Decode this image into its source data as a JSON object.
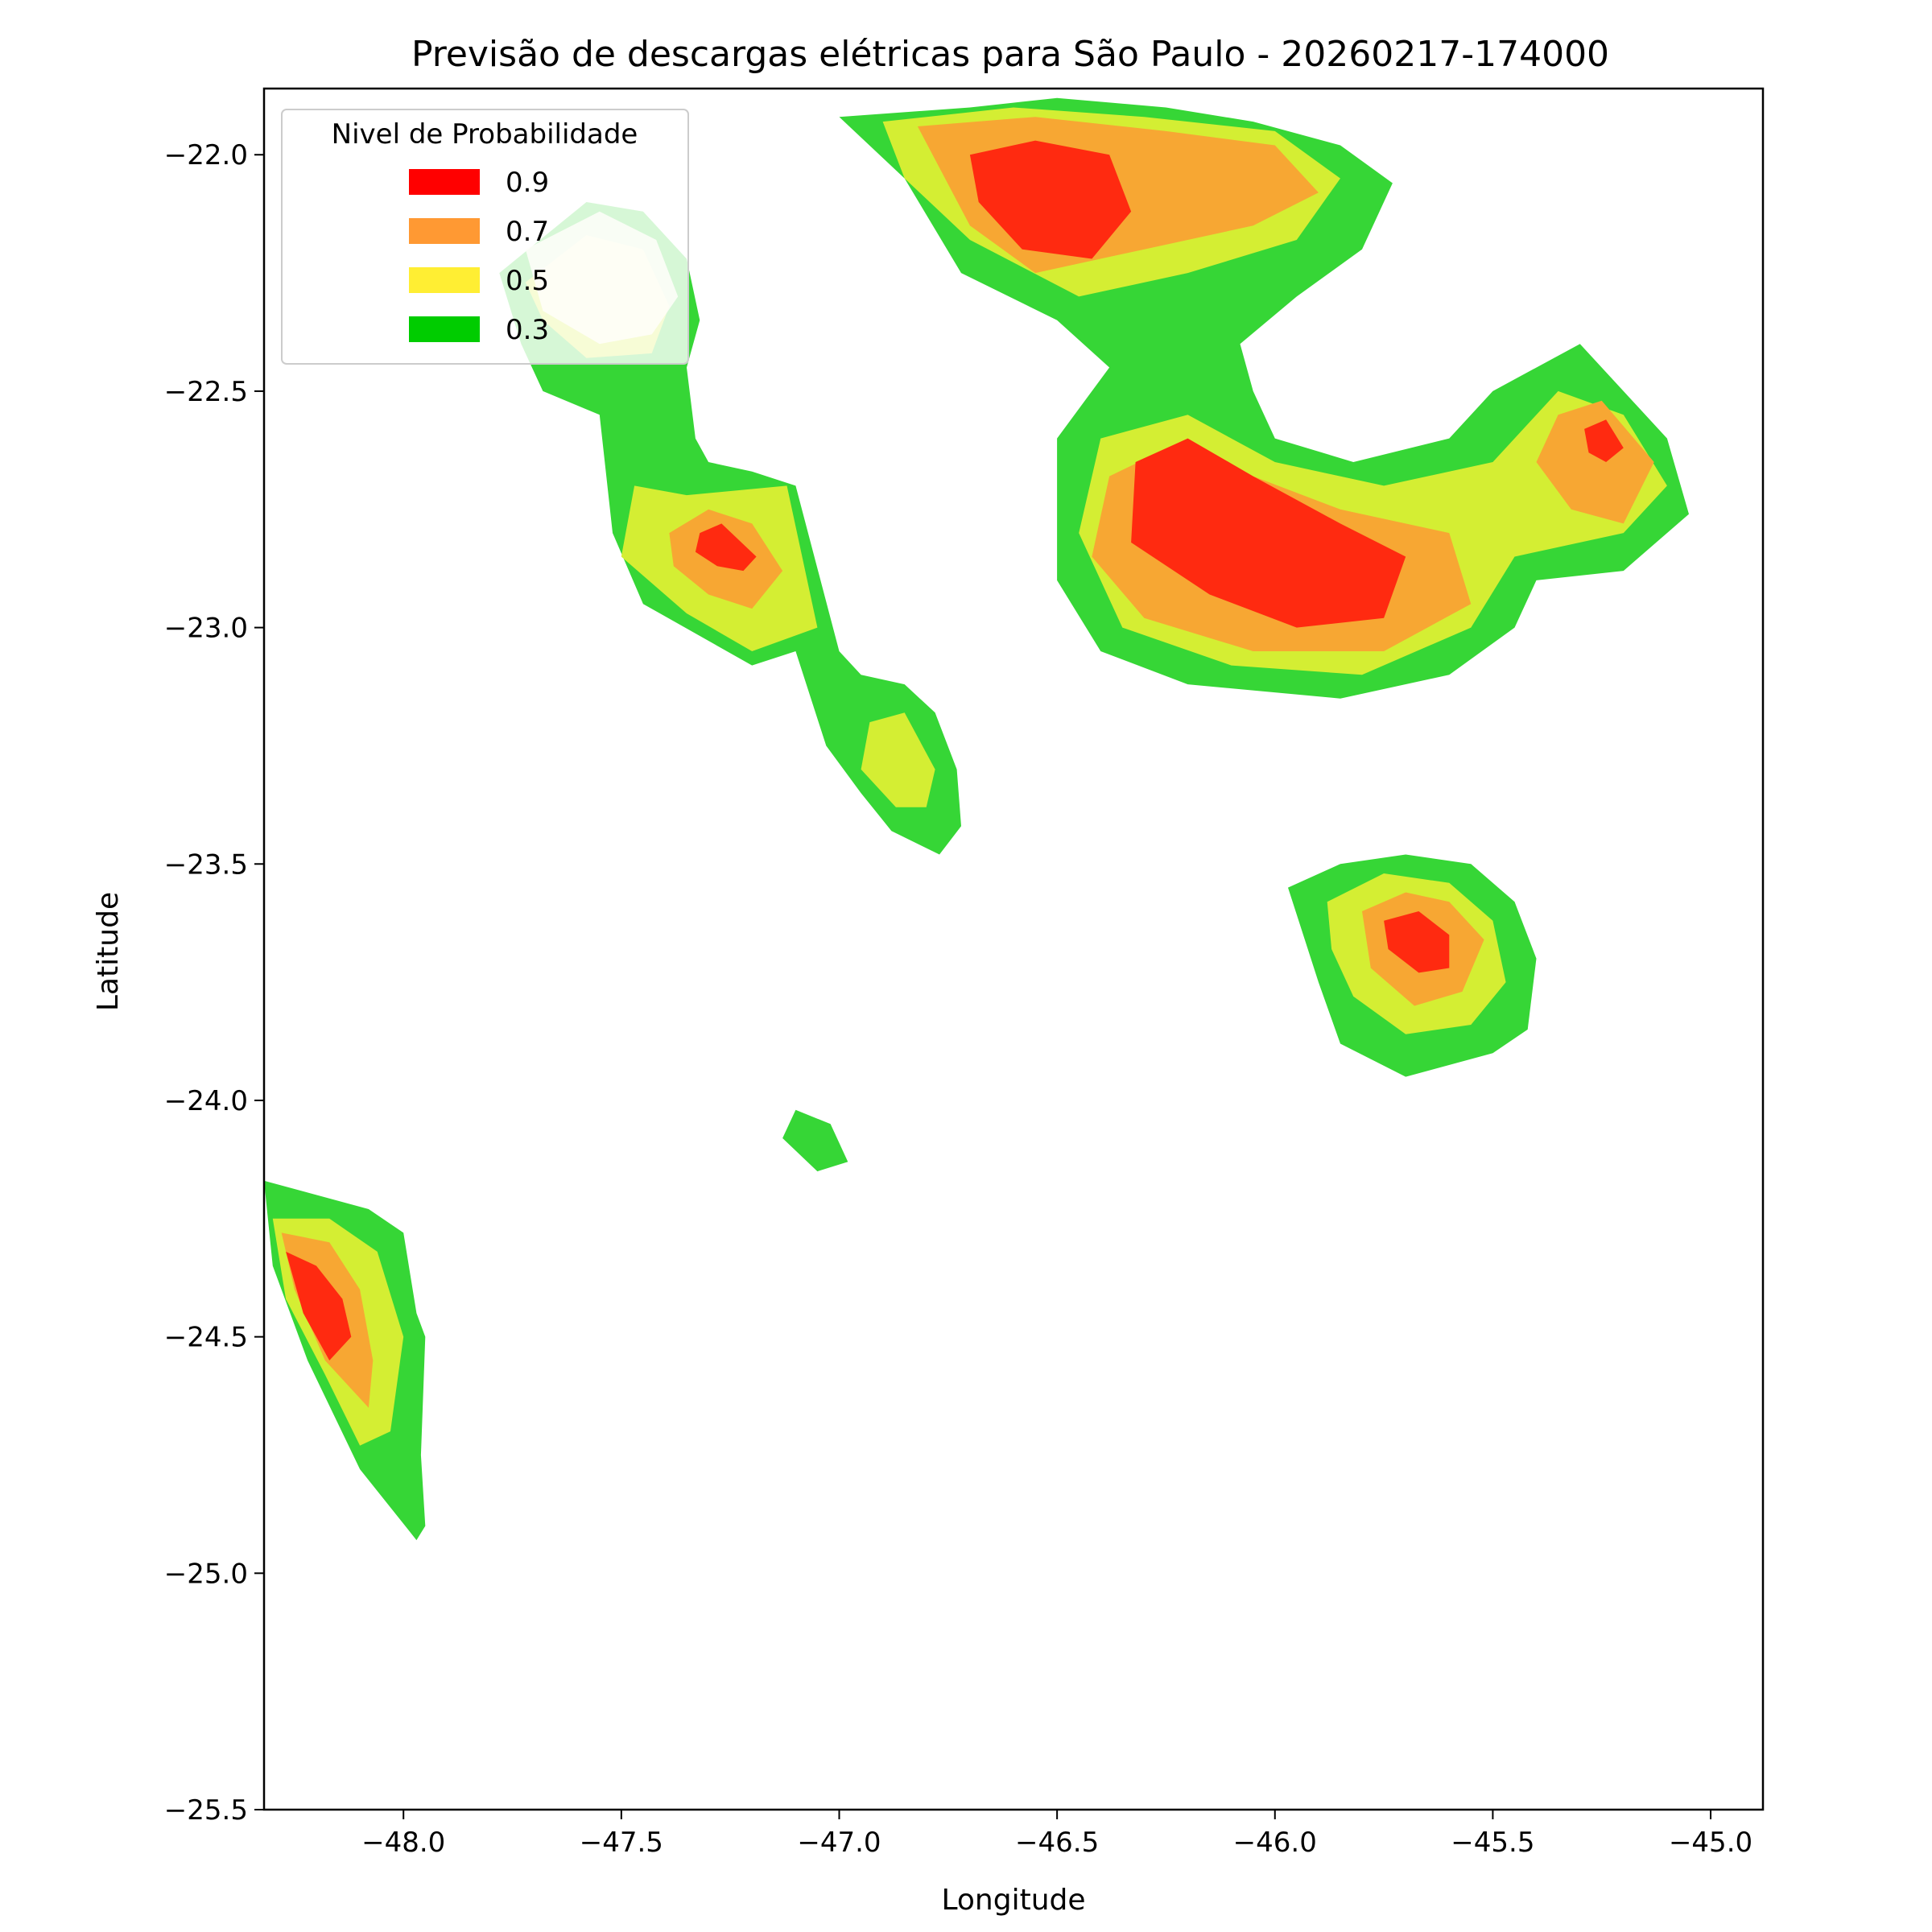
{
  "chart_data": {
    "type": "contourf",
    "title": "Previsão de descargas elétricas para São Paulo - 20260217-174000",
    "xlabel": "Longitude",
    "ylabel": "Latitude",
    "xlim": [
      -48.32,
      -44.88
    ],
    "ylim": [
      -25.5,
      -21.86
    ],
    "x_ticks": [
      -48.0,
      -47.5,
      -47.0,
      -46.5,
      -46.0,
      -45.5,
      -45.0
    ],
    "x_tick_labels": [
      "−48.0",
      "−47.5",
      "−47.0",
      "−46.5",
      "−46.0",
      "−45.5",
      "−45.0"
    ],
    "y_ticks": [
      -22.0,
      -22.5,
      -23.0,
      -23.5,
      -24.0,
      -24.5,
      -25.0,
      -25.5
    ],
    "y_tick_labels": [
      "−22.0",
      "−22.5",
      "−23.0",
      "−23.5",
      "−24.0",
      "−24.5",
      "−25.0",
      "−25.5"
    ],
    "grid": false,
    "legend": {
      "title": "Nivel de Probabilidade",
      "placement": "top-left",
      "entries": [
        {
          "label": "0.9",
          "color": "#ff0000"
        },
        {
          "label": "0.7",
          "color": "#ff9933"
        },
        {
          "label": "0.5",
          "color": "#ffee33"
        },
        {
          "label": "0.3",
          "color": "#00cc00"
        }
      ]
    },
    "level_colors": {
      "0.3": "#36d636",
      "0.5": "#d4ee33",
      "0.7": "#f7a733",
      "0.9": "#ff2a10"
    },
    "cells": [
      {
        "name": "northwest-cell",
        "levels": {
          "0.3": [
            [
              -47.78,
              -22.25
            ],
            [
              -47.58,
              -22.1
            ],
            [
              -47.45,
              -22.12
            ],
            [
              -47.35,
              -22.22
            ],
            [
              -47.32,
              -22.35
            ],
            [
              -47.35,
              -22.45
            ],
            [
              -47.33,
              -22.6
            ],
            [
              -47.3,
              -22.65
            ],
            [
              -47.2,
              -22.67
            ],
            [
              -47.1,
              -22.7
            ],
            [
              -47.0,
              -23.05
            ],
            [
              -46.95,
              -23.1
            ],
            [
              -46.85,
              -23.12
            ],
            [
              -46.78,
              -23.18
            ],
            [
              -46.73,
              -23.3
            ],
            [
              -46.72,
              -23.42
            ],
            [
              -46.77,
              -23.48
            ],
            [
              -46.88,
              -23.43
            ],
            [
              -46.95,
              -23.35
            ],
            [
              -47.03,
              -23.25
            ],
            [
              -47.1,
              -23.05
            ],
            [
              -47.2,
              -23.08
            ],
            [
              -47.45,
              -22.95
            ],
            [
              -47.52,
              -22.8
            ],
            [
              -47.55,
              -22.55
            ],
            [
              -47.68,
              -22.5
            ],
            [
              -47.73,
              -22.4
            ]
          ],
          "0.5": [
            [
              -47.72,
              -22.27
            ],
            [
              -47.58,
              -22.17
            ],
            [
              -47.45,
              -22.2
            ],
            [
              -47.39,
              -22.32
            ],
            [
              -47.43,
              -22.42
            ],
            [
              -47.58,
              -22.43
            ],
            [
              -47.68,
              -22.35
            ]
          ],
          "0.5b": [
            [
              -47.47,
              -22.7
            ],
            [
              -47.35,
              -22.72
            ],
            [
              -47.12,
              -22.7
            ],
            [
              -47.05,
              -23.0
            ],
            [
              -47.2,
              -23.05
            ],
            [
              -47.35,
              -22.97
            ],
            [
              -47.5,
              -22.85
            ]
          ],
          "0.5c": [
            [
              -46.93,
              -23.2
            ],
            [
              -46.85,
              -23.18
            ],
            [
              -46.78,
              -23.3
            ],
            [
              -46.8,
              -23.38
            ],
            [
              -46.87,
              -23.38
            ],
            [
              -46.95,
              -23.3
            ]
          ],
          "0.7": [
            [
              -47.39,
              -22.8
            ],
            [
              -47.3,
              -22.75
            ],
            [
              -47.2,
              -22.78
            ],
            [
              -47.13,
              -22.88
            ],
            [
              -47.2,
              -22.96
            ],
            [
              -47.3,
              -22.93
            ],
            [
              -47.38,
              -22.87
            ]
          ],
          "0.9": [
            [
              -47.32,
              -22.8
            ],
            [
              -47.27,
              -22.78
            ],
            [
              -47.19,
              -22.85
            ],
            [
              -47.22,
              -22.88
            ],
            [
              -47.28,
              -22.87
            ],
            [
              -47.33,
              -22.84
            ]
          ]
        },
        "faded": [
          [
            -47.72,
            -22.2
          ],
          [
            -47.55,
            -22.12
          ],
          [
            -47.42,
            -22.18
          ],
          [
            -47.37,
            -22.3
          ],
          [
            -47.43,
            -22.38
          ],
          [
            -47.55,
            -22.4
          ],
          [
            -47.68,
            -22.33
          ]
        ]
      },
      {
        "name": "northeast-cell",
        "levels": {
          "0.3": [
            [
              -47.0,
              -21.92
            ],
            [
              -46.7,
              -21.9
            ],
            [
              -46.5,
              -21.88
            ],
            [
              -46.25,
              -21.9
            ],
            [
              -46.05,
              -21.93
            ],
            [
              -45.85,
              -21.98
            ],
            [
              -45.73,
              -22.06
            ],
            [
              -45.8,
              -22.2
            ],
            [
              -45.95,
              -22.3
            ],
            [
              -46.08,
              -22.4
            ],
            [
              -46.05,
              -22.5
            ],
            [
              -46.0,
              -22.6
            ],
            [
              -45.82,
              -22.65
            ],
            [
              -45.6,
              -22.6
            ],
            [
              -45.5,
              -22.5
            ],
            [
              -45.3,
              -22.4
            ],
            [
              -45.1,
              -22.6
            ],
            [
              -45.05,
              -22.76
            ],
            [
              -45.2,
              -22.88
            ],
            [
              -45.4,
              -22.9
            ],
            [
              -45.45,
              -23.0
            ],
            [
              -45.6,
              -23.1
            ],
            [
              -45.85,
              -23.15
            ],
            [
              -46.2,
              -23.12
            ],
            [
              -46.4,
              -23.05
            ],
            [
              -46.5,
              -22.9
            ],
            [
              -46.5,
              -22.6
            ],
            [
              -46.38,
              -22.45
            ],
            [
              -46.5,
              -22.35
            ],
            [
              -46.72,
              -22.25
            ],
            [
              -46.85,
              -22.05
            ]
          ],
          "0.5": [
            [
              -46.9,
              -21.93
            ],
            [
              -46.6,
              -21.9
            ],
            [
              -46.3,
              -21.92
            ],
            [
              -46.0,
              -21.95
            ],
            [
              -45.85,
              -22.05
            ],
            [
              -45.95,
              -22.18
            ],
            [
              -46.2,
              -22.25
            ],
            [
              -46.45,
              -22.3
            ],
            [
              -46.7,
              -22.18
            ],
            [
              -46.85,
              -22.05
            ]
          ],
          "0.5b": [
            [
              -46.4,
              -22.6
            ],
            [
              -46.2,
              -22.55
            ],
            [
              -46.0,
              -22.65
            ],
            [
              -45.75,
              -22.7
            ],
            [
              -45.5,
              -22.65
            ],
            [
              -45.35,
              -22.5
            ],
            [
              -45.2,
              -22.55
            ],
            [
              -45.1,
              -22.7
            ],
            [
              -45.2,
              -22.8
            ],
            [
              -45.45,
              -22.85
            ],
            [
              -45.55,
              -23.0
            ],
            [
              -45.8,
              -23.1
            ],
            [
              -46.1,
              -23.08
            ],
            [
              -46.35,
              -23.0
            ],
            [
              -46.45,
              -22.8
            ]
          ],
          "0.7": [
            [
              -46.82,
              -21.94
            ],
            [
              -46.55,
              -21.92
            ],
            [
              -46.25,
              -21.95
            ],
            [
              -46.0,
              -21.98
            ],
            [
              -45.9,
              -22.08
            ],
            [
              -46.05,
              -22.15
            ],
            [
              -46.3,
              -22.2
            ],
            [
              -46.55,
              -22.25
            ],
            [
              -46.7,
              -22.15
            ]
          ],
          "0.7b": [
            [
              -46.38,
              -22.68
            ],
            [
              -46.2,
              -22.6
            ],
            [
              -46.05,
              -22.68
            ],
            [
              -45.85,
              -22.75
            ],
            [
              -45.6,
              -22.8
            ],
            [
              -45.55,
              -22.95
            ],
            [
              -45.75,
              -23.05
            ],
            [
              -46.05,
              -23.05
            ],
            [
              -46.3,
              -22.98
            ],
            [
              -46.42,
              -22.85
            ]
          ],
          "0.7c": [
            [
              -45.35,
              -22.55
            ],
            [
              -45.25,
              -22.52
            ],
            [
              -45.13,
              -22.65
            ],
            [
              -45.2,
              -22.78
            ],
            [
              -45.32,
              -22.75
            ],
            [
              -45.4,
              -22.65
            ]
          ],
          "0.9": [
            [
              -46.7,
              -22.0
            ],
            [
              -46.55,
              -21.97
            ],
            [
              -46.38,
              -22.0
            ],
            [
              -46.33,
              -22.12
            ],
            [
              -46.42,
              -22.22
            ],
            [
              -46.58,
              -22.2
            ],
            [
              -46.68,
              -22.1
            ]
          ],
          "0.9b": [
            [
              -46.32,
              -22.65
            ],
            [
              -46.2,
              -22.6
            ],
            [
              -46.05,
              -22.68
            ],
            [
              -45.85,
              -22.78
            ],
            [
              -45.7,
              -22.85
            ],
            [
              -45.75,
              -22.98
            ],
            [
              -45.95,
              -23.0
            ],
            [
              -46.15,
              -22.93
            ],
            [
              -46.33,
              -22.82
            ]
          ],
          "0.9c": [
            [
              -45.29,
              -22.58
            ],
            [
              -45.24,
              -22.56
            ],
            [
              -45.2,
              -22.62
            ],
            [
              -45.24,
              -22.65
            ],
            [
              -45.28,
              -22.63
            ]
          ]
        }
      },
      {
        "name": "southeast-cell",
        "levels": {
          "0.3": [
            [
              -45.97,
              -23.55
            ],
            [
              -45.85,
              -23.5
            ],
            [
              -45.7,
              -23.48
            ],
            [
              -45.55,
              -23.5
            ],
            [
              -45.45,
              -23.58
            ],
            [
              -45.4,
              -23.7
            ],
            [
              -45.42,
              -23.85
            ],
            [
              -45.5,
              -23.9
            ],
            [
              -45.7,
              -23.95
            ],
            [
              -45.85,
              -23.88
            ],
            [
              -45.9,
              -23.75
            ]
          ],
          "0.5": [
            [
              -45.88,
              -23.58
            ],
            [
              -45.75,
              -23.52
            ],
            [
              -45.6,
              -23.54
            ],
            [
              -45.5,
              -23.62
            ],
            [
              -45.47,
              -23.75
            ],
            [
              -45.55,
              -23.84
            ],
            [
              -45.7,
              -23.86
            ],
            [
              -45.82,
              -23.78
            ],
            [
              -45.87,
              -23.68
            ]
          ],
          "0.7": [
            [
              -45.8,
              -23.6
            ],
            [
              -45.7,
              -23.56
            ],
            [
              -45.6,
              -23.58
            ],
            [
              -45.52,
              -23.66
            ],
            [
              -45.57,
              -23.77
            ],
            [
              -45.68,
              -23.8
            ],
            [
              -45.78,
              -23.72
            ]
          ],
          "0.9": [
            [
              -45.75,
              -23.62
            ],
            [
              -45.67,
              -23.6
            ],
            [
              -45.6,
              -23.65
            ],
            [
              -45.6,
              -23.72
            ],
            [
              -45.67,
              -23.73
            ],
            [
              -45.74,
              -23.68
            ]
          ]
        }
      },
      {
        "name": "southwest-cell",
        "levels": {
          "0.3": [
            [
              -48.32,
              -24.17
            ],
            [
              -48.2,
              -24.2
            ],
            [
              -48.08,
              -24.23
            ],
            [
              -48.0,
              -24.28
            ],
            [
              -47.97,
              -24.45
            ],
            [
              -47.95,
              -24.5
            ],
            [
              -47.96,
              -24.75
            ],
            [
              -47.95,
              -24.9
            ],
            [
              -47.97,
              -24.93
            ],
            [
              -48.1,
              -24.78
            ],
            [
              -48.22,
              -24.55
            ],
            [
              -48.3,
              -24.35
            ]
          ],
          "0.5": [
            [
              -48.3,
              -24.25
            ],
            [
              -48.17,
              -24.25
            ],
            [
              -48.06,
              -24.32
            ],
            [
              -48.0,
              -24.5
            ],
            [
              -48.03,
              -24.7
            ],
            [
              -48.1,
              -24.73
            ],
            [
              -48.18,
              -24.58
            ],
            [
              -48.27,
              -24.42
            ]
          ],
          "0.7": [
            [
              -48.28,
              -24.28
            ],
            [
              -48.17,
              -24.3
            ],
            [
              -48.1,
              -24.4
            ],
            [
              -48.07,
              -24.55
            ],
            [
              -48.08,
              -24.65
            ],
            [
              -48.18,
              -24.55
            ],
            [
              -48.25,
              -24.4
            ]
          ],
          "0.9": [
            [
              -48.27,
              -24.32
            ],
            [
              -48.2,
              -24.35
            ],
            [
              -48.14,
              -24.42
            ],
            [
              -48.12,
              -24.5
            ],
            [
              -48.17,
              -24.55
            ],
            [
              -48.23,
              -24.45
            ]
          ]
        }
      },
      {
        "name": "small-cell",
        "levels": {
          "0.3": [
            [
              -47.1,
              -24.02
            ],
            [
              -47.02,
              -24.05
            ],
            [
              -46.98,
              -24.13
            ],
            [
              -47.05,
              -24.15
            ],
            [
              -47.13,
              -24.08
            ]
          ]
        }
      }
    ]
  }
}
